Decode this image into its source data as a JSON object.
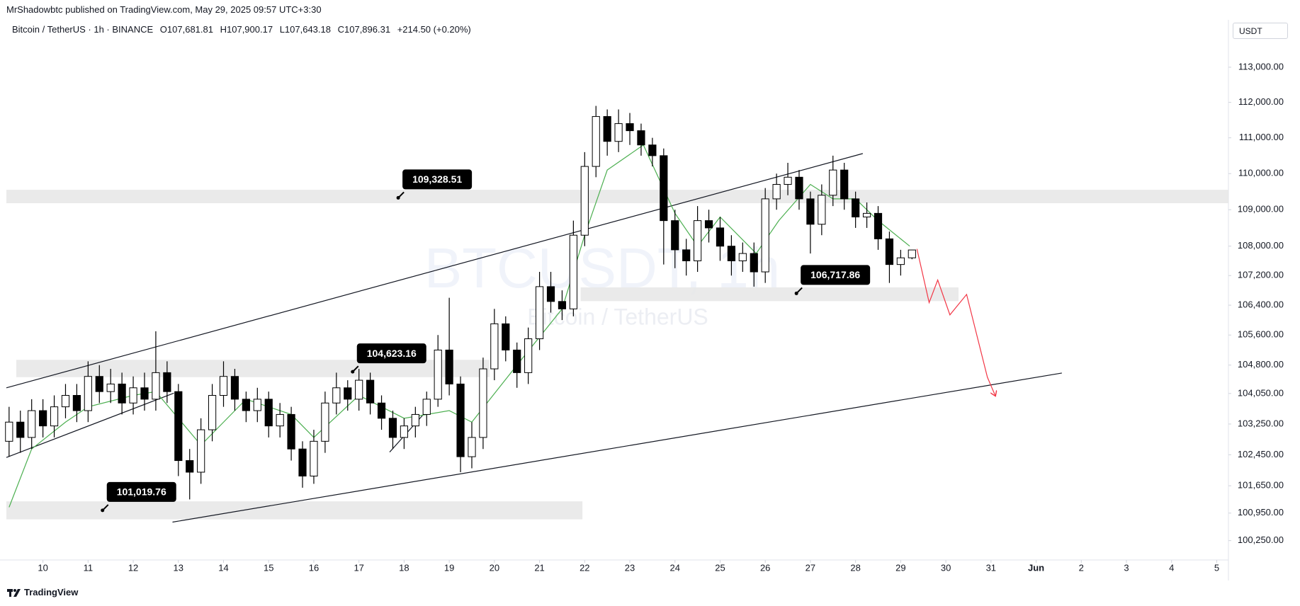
{
  "header": {
    "publisher": "MrShadowbtc published on TradingView.com, May 29, 2025 09:57 UTC+3:30",
    "symbol": "Bitcoin / TetherUS · 1h · BINANCE",
    "open": "O107,681.81",
    "high": "H107,900.17",
    "low": "L107,643.18",
    "close": "C107,896.31",
    "change": "+214.50 (+0.20%)",
    "currency": "USDT"
  },
  "footer": {
    "brand": "TradingView"
  },
  "chart_data": {
    "type": "candlestick",
    "watermark": [
      "BTCUSDT, 1h",
      "Bitcoin / TetherUS"
    ],
    "log_scale": true,
    "grid": false,
    "up_color": "#ffffff",
    "down_color": "#000000",
    "wick_color": "#000000",
    "xlim": [
      -0.81,
      26.26
    ],
    "ylim": [
      99760,
      114260
    ],
    "xticks": [
      {
        "value": 0,
        "label": "10"
      },
      {
        "value": 1,
        "label": "11"
      },
      {
        "value": 2,
        "label": "12"
      },
      {
        "value": 3,
        "label": "13"
      },
      {
        "value": 4,
        "label": "14"
      },
      {
        "value": 5,
        "label": "15"
      },
      {
        "value": 6,
        "label": "16"
      },
      {
        "value": 7,
        "label": "17"
      },
      {
        "value": 8,
        "label": "18"
      },
      {
        "value": 9,
        "label": "19"
      },
      {
        "value": 10,
        "label": "20"
      },
      {
        "value": 11,
        "label": "21"
      },
      {
        "value": 12,
        "label": "22"
      },
      {
        "value": 13,
        "label": "23"
      },
      {
        "value": 14,
        "label": "24"
      },
      {
        "value": 15,
        "label": "25"
      },
      {
        "value": 16,
        "label": "26"
      },
      {
        "value": 17,
        "label": "27"
      },
      {
        "value": 18,
        "label": "28"
      },
      {
        "value": 19,
        "label": "29"
      },
      {
        "value": 20,
        "label": "30"
      },
      {
        "value": 21,
        "label": "31"
      },
      {
        "value": 22,
        "label": "Jun"
      },
      {
        "value": 23,
        "label": "2"
      },
      {
        "value": 24,
        "label": "3"
      },
      {
        "value": 25,
        "label": "4"
      },
      {
        "value": 26,
        "label": "5"
      }
    ],
    "yticks": [
      {
        "value": 113000,
        "label": "113,000.00"
      },
      {
        "value": 112000,
        "label": "112,000.00"
      },
      {
        "value": 111000,
        "label": "111,000.00"
      },
      {
        "value": 110000,
        "label": "110,000.00"
      },
      {
        "value": 109000,
        "label": "109,000.00"
      },
      {
        "value": 108000,
        "label": "108,000.00"
      },
      {
        "value": 107200,
        "label": "107,200.00"
      },
      {
        "value": 106400,
        "label": "106,400.00"
      },
      {
        "value": 105600,
        "label": "105,600.00"
      },
      {
        "value": 104800,
        "label": "104,800.00"
      },
      {
        "value": 104050,
        "label": "104,050.00"
      },
      {
        "value": 103250,
        "label": "103,250.00"
      },
      {
        "value": 102450,
        "label": "102,450.00"
      },
      {
        "value": 101650,
        "label": "101,650.00"
      },
      {
        "value": 100950,
        "label": "100,950.00"
      },
      {
        "value": 100250,
        "label": "100,250.00"
      }
    ],
    "x": [
      -0.75,
      -0.5,
      -0.25,
      0,
      0.25,
      0.5,
      0.75,
      1,
      1.25,
      1.5,
      1.75,
      2,
      2.25,
      2.5,
      2.75,
      3,
      3.25,
      3.5,
      3.75,
      4,
      4.25,
      4.5,
      4.75,
      5,
      5.25,
      5.5,
      5.75,
      6,
      6.25,
      6.5,
      6.75,
      7,
      7.25,
      7.5,
      7.75,
      8,
      8.25,
      8.5,
      8.75,
      9,
      9.25,
      9.5,
      9.75,
      10,
      10.25,
      10.5,
      10.75,
      11,
      11.25,
      11.5,
      11.75,
      12,
      12.25,
      12.5,
      12.75,
      13,
      13.25,
      13.5,
      13.75,
      14,
      14.25,
      14.5,
      14.75,
      15,
      15.25,
      15.5,
      15.75,
      16,
      16.25,
      16.5,
      16.75,
      17,
      17.25,
      17.5,
      17.75,
      18,
      18.25,
      18.5,
      18.75,
      19,
      19.25
    ],
    "open": [
      102800,
      103300,
      102900,
      103600,
      103200,
      103700,
      104000,
      103600,
      104500,
      104100,
      104300,
      103800,
      104200,
      103900,
      104600,
      104100,
      102300,
      102000,
      103100,
      104000,
      104500,
      103900,
      103600,
      103900,
      103200,
      103500,
      102600,
      101900,
      102800,
      103800,
      104200,
      103900,
      104400,
      103800,
      103400,
      102900,
      103200,
      103500,
      103900,
      105200,
      104300,
      102400,
      102900,
      104700,
      105900,
      105200,
      104600,
      105500,
      106900,
      106500,
      106300,
      108300,
      110200,
      111600,
      110900,
      111400,
      111200,
      110800,
      110500,
      108700,
      107900,
      107600,
      108700,
      108500,
      108000,
      107600,
      107800,
      107300,
      109300,
      109700,
      109900,
      109300,
      108600,
      109400,
      110100,
      109300,
      108800,
      108900,
      108200,
      107500,
      107681.81
    ],
    "high": [
      103700,
      103600,
      103900,
      103900,
      104000,
      104300,
      104300,
      104900,
      104800,
      104700,
      104600,
      104500,
      104600,
      105700,
      104900,
      104300,
      102600,
      103400,
      104300,
      104900,
      104700,
      104100,
      104200,
      104100,
      103800,
      103700,
      102800,
      103100,
      104100,
      104600,
      104400,
      104700,
      104600,
      104000,
      103600,
      103400,
      103700,
      104100,
      105600,
      106600,
      104500,
      103300,
      105000,
      106300,
      106100,
      105400,
      105800,
      107300,
      107300,
      106800,
      108700,
      110600,
      111900,
      111800,
      111800,
      111700,
      111400,
      111000,
      110700,
      109000,
      108200,
      109100,
      109000,
      108800,
      108300,
      108100,
      108100,
      109600,
      110000,
      110300,
      110100,
      109500,
      109700,
      110500,
      110300,
      109500,
      109200,
      109100,
      108400,
      107900,
      107900.17
    ],
    "low": [
      102400,
      102500,
      102600,
      102900,
      102900,
      103400,
      103300,
      103300,
      103800,
      103800,
      103500,
      103500,
      103600,
      103600,
      103800,
      101900,
      101300,
      101700,
      102800,
      103700,
      103600,
      103300,
      103300,
      102900,
      102900,
      102300,
      101600,
      101700,
      102500,
      103500,
      103600,
      103600,
      103500,
      103100,
      102600,
      102600,
      102900,
      103200,
      103700,
      104000,
      102000,
      102100,
      102600,
      104400,
      104900,
      104200,
      104300,
      105200,
      106200,
      106000,
      106100,
      108000,
      109900,
      110500,
      110600,
      110800,
      110500,
      110200,
      107500,
      107400,
      107200,
      107300,
      108100,
      107600,
      107200,
      107300,
      106900,
      107000,
      109000,
      109400,
      109000,
      107800,
      108300,
      109100,
      109000,
      108500,
      108500,
      107900,
      107000,
      107200,
      107643.18
    ],
    "close": [
      103300,
      102900,
      103600,
      103200,
      103700,
      104000,
      103600,
      104500,
      104100,
      104300,
      103800,
      104200,
      103900,
      104600,
      104100,
      102300,
      102000,
      103100,
      104000,
      104500,
      103900,
      103600,
      103900,
      103200,
      103500,
      102600,
      101900,
      102800,
      103800,
      104200,
      103900,
      104400,
      103800,
      103400,
      102900,
      103200,
      103500,
      103900,
      105200,
      104300,
      102400,
      102900,
      104700,
      105900,
      105200,
      104600,
      105500,
      106900,
      106500,
      106300,
      108300,
      110200,
      111600,
      110900,
      111400,
      111200,
      110800,
      110500,
      108700,
      107900,
      107600,
      108700,
      108500,
      108000,
      107600,
      107800,
      107300,
      109300,
      109700,
      109900,
      109300,
      108600,
      109400,
      110100,
      109300,
      108800,
      108900,
      108200,
      107500,
      107681.81,
      107896.31
    ],
    "moving_average": {
      "color": "#4caf50",
      "x": [
        -0.75,
        -0.25,
        0.5,
        1,
        2,
        2.5,
        3.5,
        4.5,
        5.5,
        6,
        7,
        8,
        9,
        9.5,
        10.5,
        11.5,
        12,
        12.5,
        13.3,
        14,
        14.5,
        15,
        15.8,
        16.3,
        17,
        17.5,
        18,
        18.5,
        19.2
      ],
      "values": [
        101100,
        102600,
        103300,
        103700,
        104000,
        104100,
        102700,
        103900,
        103500,
        102900,
        104000,
        103400,
        103600,
        103300,
        104800,
        106300,
        108300,
        110100,
        110800,
        108900,
        108000,
        108800,
        107800,
        108700,
        109700,
        109300,
        109300,
        108700,
        108000
      ]
    },
    "projection": {
      "color": "#f23645",
      "x": [
        19.36,
        19.63,
        19.82,
        20.09,
        20.46,
        20.92,
        21.1
      ],
      "values": [
        107925,
        106470,
        107080,
        106140,
        106690,
        104480,
        103980
      ]
    },
    "trendlines": [
      {
        "x": [
          -0.81,
          18.16
        ],
        "values": [
          104200,
          110560
        ]
      },
      {
        "x": [
          2.87,
          22.57
        ],
        "values": [
          100720,
          104590
        ]
      },
      {
        "x": [
          -0.81,
          2.9
        ],
        "values": [
          102380,
          104060
        ]
      },
      {
        "x": [
          7.68,
          8.51
        ],
        "values": [
          102520,
          103610
        ]
      }
    ],
    "zones": [
      {
        "value": 109328.51,
        "label": "109,328.51",
        "low": 109180,
        "high": 109550,
        "x": [
          -0.81,
          26.26
        ],
        "anchor_x": 7.87
      },
      {
        "value": 104623.16,
        "label": "104,623.16",
        "low": 104480,
        "high": 104940,
        "x": [
          -0.59,
          9.89
        ],
        "anchor_x": 6.86
      },
      {
        "value": 101019.76,
        "label": "101,019.76",
        "low": 100790,
        "high": 101250,
        "x": [
          -0.81,
          11.95
        ],
        "anchor_x": 1.32
      },
      {
        "value": 106717.86,
        "label": "106,717.86",
        "low": 106510,
        "high": 106880,
        "x": [
          11.91,
          20.28
        ],
        "anchor_x": 16.69
      }
    ]
  }
}
